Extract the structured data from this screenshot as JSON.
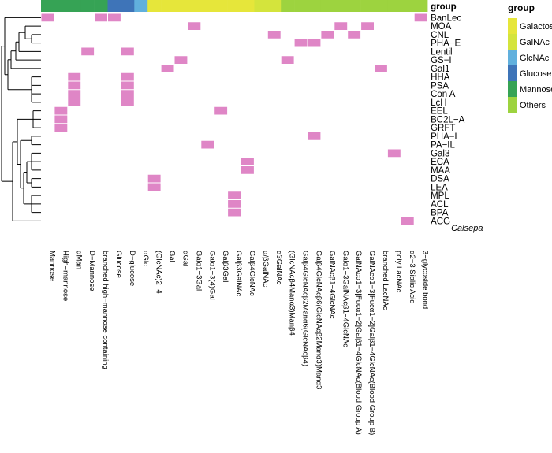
{
  "chart_data": {
    "type": "heatmap",
    "annotation_title": "group",
    "legend_title": "group",
    "legend_position": "right",
    "cell_color": "#df86c6",
    "group_colors": {
      "Galactose": "#e6e63a",
      "GalNAc": "#d4e43c",
      "GlcNAc": "#61b0dd",
      "Glucose": "#3e74b8",
      "Mannose": "#36a355",
      "Others": "#9dd33f"
    },
    "legend_entries": [
      "Galactose",
      "GalNAc",
      "GlcNAc",
      "Glucose",
      "Mannose",
      "Others"
    ],
    "rows": [
      "BanLec",
      "MOA",
      "CNL",
      "PHA−E",
      "Lentil",
      "GS−I",
      "Gal1",
      "HHA",
      "PSA",
      "Con A",
      "LcH",
      "EEL",
      "BC2L−A",
      "GRFT",
      "PHA−L",
      "PA−IL",
      "Gal3",
      "ECA",
      "MAA",
      "DSA",
      "LEA",
      "MPL",
      "ACL",
      "BPA",
      "ACG"
    ],
    "extra_label": "Calsepa",
    "columns": [
      "Mannose",
      "High−mannose",
      "αMan",
      "D−Mannose",
      "branched high−mannose containing",
      "Glucose",
      "D−glucose",
      "αGlc",
      "(GlcNAc)2−4",
      "Gal",
      "αGal",
      "Galα1−3Gal",
      "Galα1−3(4)Gal",
      "Galβ3Gal",
      "Galβ3GalNAc",
      "Galβ4GlcNAc",
      "α/βGalNAc",
      "α3GalNAc",
      "(GlcNAcβ4Manα3)Manβ4",
      "Galβ4GlcNAcβ2Manα6(GlcNAcβ4)",
      "Galβ4GlcNAcβ6(GlcNAcβ2Manα3)Manα3",
      "GalNAcβ1−4GlcNAc",
      "Galα1−3GalNAcβ1−4GlcNAc",
      "GalNAcα1−3[Fucα1−2]Galβ1−4GlcNAc(Blood Group A)",
      "GalNAcα1−3[Fucα1−2]Galβ1−4GlcNAc(Blood Group B)",
      "branched LacNAc",
      "poly LacNAc",
      "α2−3 Sialic Acid",
      "3−glycoside bond"
    ],
    "column_groups": [
      "Mannose",
      "Mannose",
      "Mannose",
      "Mannose",
      "Mannose",
      "Glucose",
      "Glucose",
      "GlcNAc",
      "Galactose",
      "Galactose",
      "Galactose",
      "Galactose",
      "Galactose",
      "Galactose",
      "Galactose",
      "Galactose",
      "GalNAc",
      "GalNAc",
      "Others",
      "Others",
      "Others",
      "Others",
      "Others",
      "Others",
      "Others",
      "Others",
      "Others",
      "Others",
      "Others"
    ],
    "cells": [
      [
        0,
        0
      ],
      [
        0,
        4
      ],
      [
        0,
        5
      ],
      [
        0,
        28
      ],
      [
        1,
        11
      ],
      [
        1,
        22
      ],
      [
        1,
        24
      ],
      [
        2,
        17
      ],
      [
        2,
        21
      ],
      [
        2,
        23
      ],
      [
        3,
        19
      ],
      [
        3,
        20
      ],
      [
        4,
        3
      ],
      [
        4,
        6
      ],
      [
        5,
        10
      ],
      [
        5,
        18
      ],
      [
        6,
        9
      ],
      [
        6,
        25
      ],
      [
        7,
        2
      ],
      [
        8,
        2
      ],
      [
        9,
        2
      ],
      [
        10,
        2
      ],
      [
        7,
        6
      ],
      [
        8,
        6
      ],
      [
        9,
        6
      ],
      [
        10,
        6
      ],
      [
        11,
        13
      ],
      [
        11,
        1
      ],
      [
        12,
        1
      ],
      [
        13,
        1
      ],
      [
        14,
        20
      ],
      [
        15,
        12
      ],
      [
        16,
        26
      ],
      [
        17,
        15
      ],
      [
        18,
        15
      ],
      [
        19,
        8
      ],
      [
        20,
        8
      ],
      [
        21,
        14
      ],
      [
        22,
        14
      ],
      [
        23,
        14
      ],
      [
        24,
        27
      ]
    ]
  }
}
